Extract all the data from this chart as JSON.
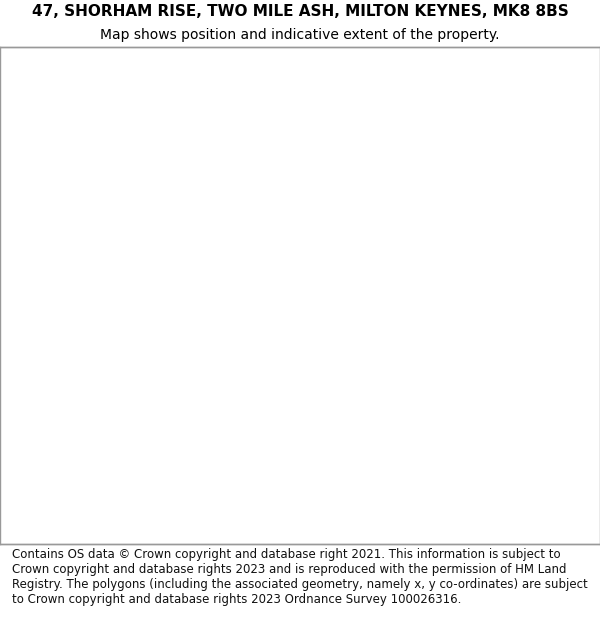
{
  "title": "47, SHORHAM RISE, TWO MILE ASH, MILTON KEYNES, MK8 8BS",
  "subtitle": "Map shows position and indicative extent of the property.",
  "footer": "Contains OS data © Crown copyright and database right 2021. This information is subject to Crown copyright and database rights 2023 and is reproduced with the permission of HM Land Registry. The polygons (including the associated geometry, namely x, y co-ordinates) are subject to Crown copyright and database rights 2023 Ordnance Survey 100026316.",
  "title_fontsize": 11,
  "subtitle_fontsize": 10,
  "footer_fontsize": 8.5,
  "bg_color": "#f5f5f0",
  "road_color": "#ffffff",
  "road_edge_color": "#cccccc",
  "building_color": "#e8e8e8",
  "building_edge_color": "#bbbbbb",
  "green_light": "#c8dfc8",
  "green_dark": "#5a9060",
  "green_park": "#b8d8b0",
  "highlight_color": "#cc0000",
  "water_color": "#a8c8e8",
  "map_bg": "#f0ede8"
}
